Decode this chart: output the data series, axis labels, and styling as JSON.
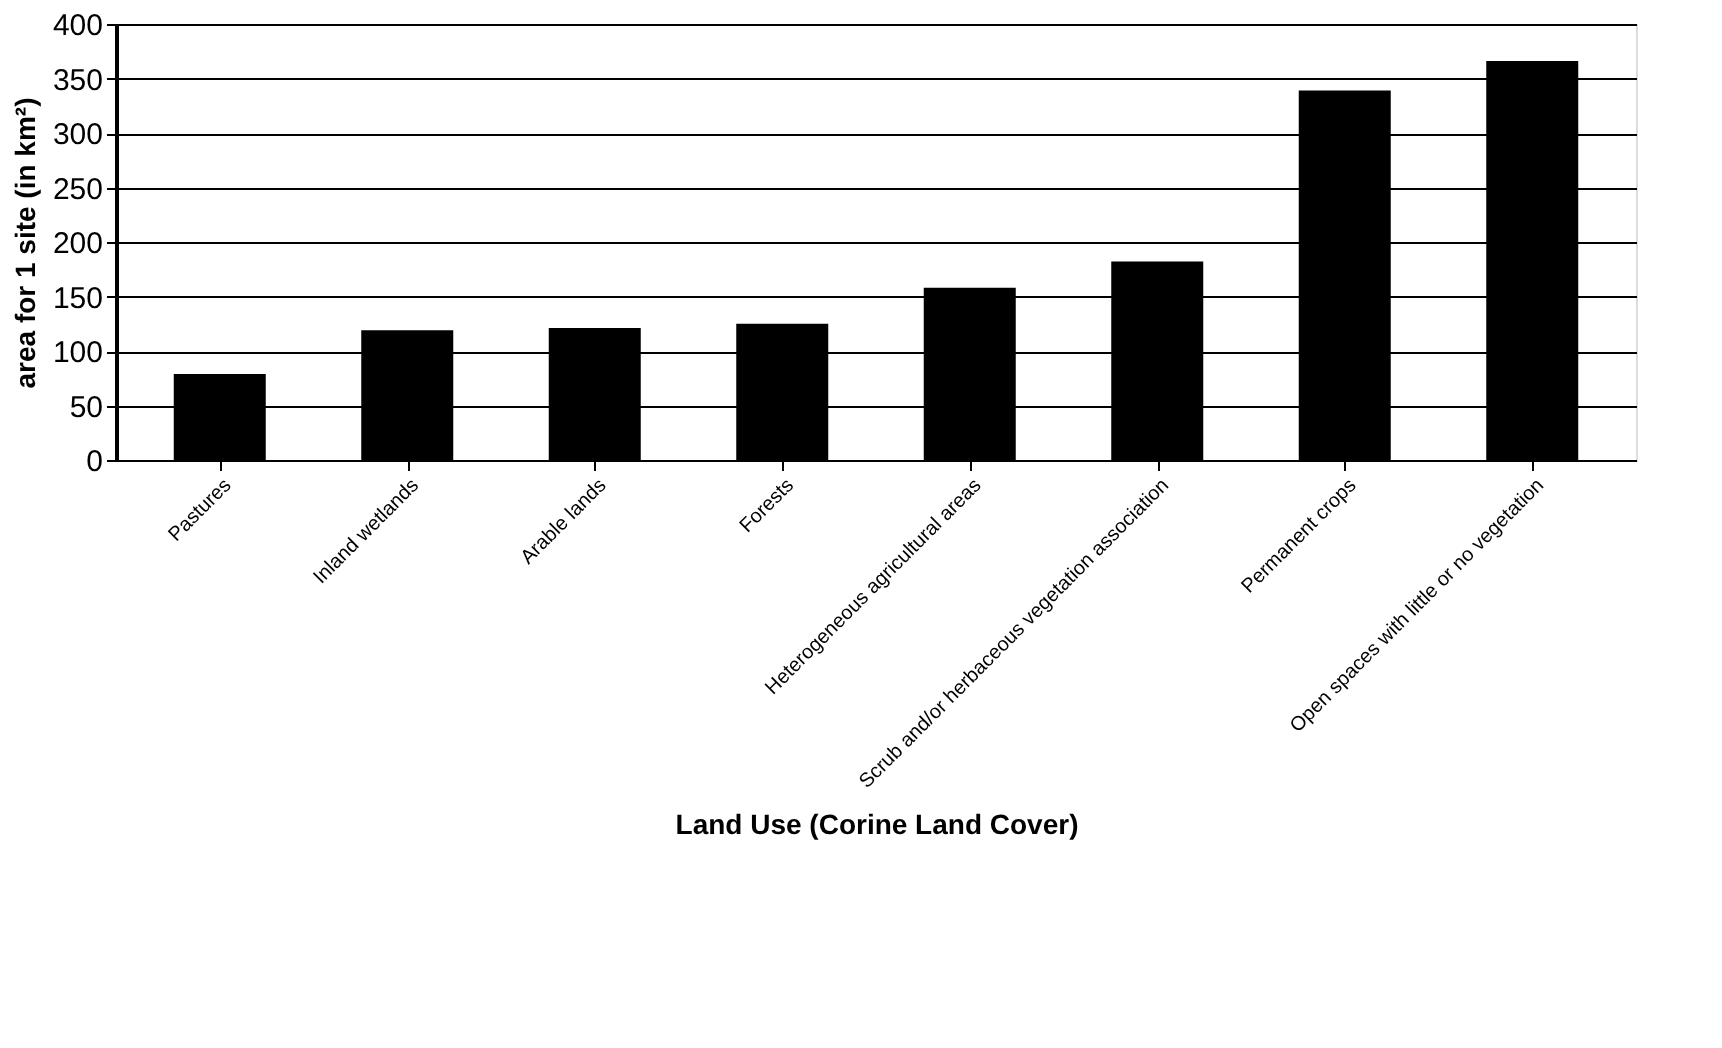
{
  "chart_data": {
    "type": "bar",
    "xlabel": "Land Use (Corine Land Cover)",
    "ylabel": "area for 1 site (in km²)",
    "categories": [
      "Pastures",
      "Inland wetlands",
      "Arable lands",
      "Forests",
      "Heterogeneous agricultural areas",
      "Scrub and/or herbaceous vegetation association",
      "Permanent crops",
      "Open spaces with little or no vegetation"
    ],
    "values": [
      79,
      119,
      121,
      125,
      158,
      182,
      339,
      366
    ],
    "color": "#000000",
    "ylim": [
      0,
      400
    ],
    "yticks": [
      0,
      50,
      100,
      150,
      200,
      250,
      300,
      350,
      400
    ],
    "grid": "y"
  }
}
